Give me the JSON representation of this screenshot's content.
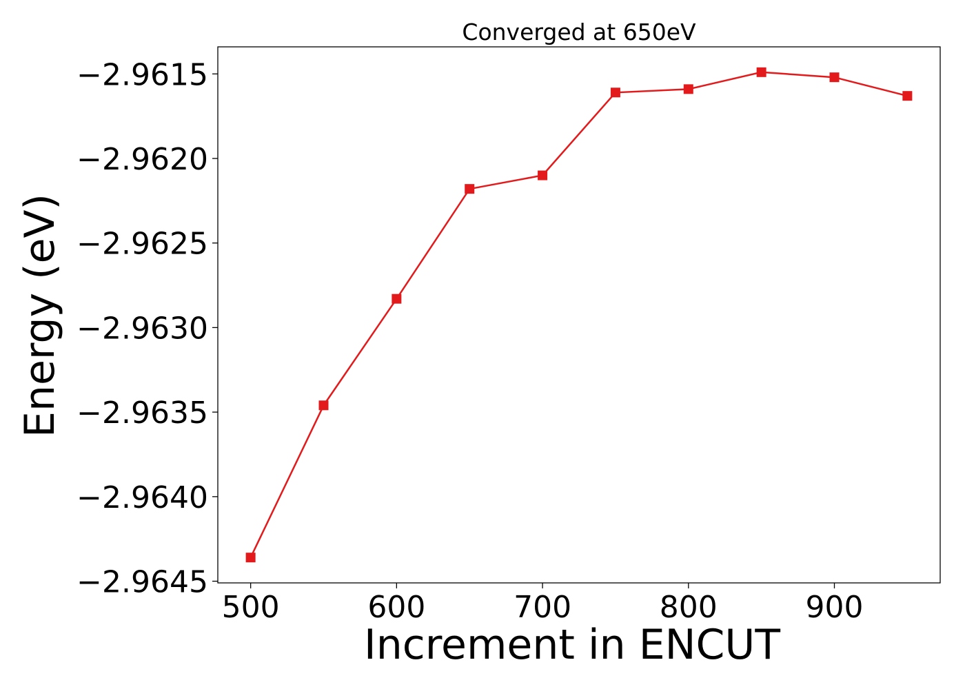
{
  "chart_data": {
    "type": "line",
    "title": "Converged at 650eV",
    "xlabel": "Increment in ENCUT",
    "ylabel": "Energy (eV)",
    "x": [
      500,
      550,
      600,
      650,
      700,
      750,
      800,
      850,
      900,
      950
    ],
    "series": [
      {
        "values": [
          -2.96436,
          -2.96346,
          -2.96283,
          -2.96218,
          -2.9621,
          -2.96161,
          -2.96159,
          -2.96149,
          -2.96152,
          -2.96163
        ],
        "color": "#e31a1c",
        "marker": "square"
      }
    ],
    "xlim": [
      477.5,
      972.5
    ],
    "ylim": [
      -2.96451,
      -2.96134
    ],
    "xticks": [
      500,
      600,
      700,
      800,
      900
    ],
    "xtick_labels": [
      "500",
      "600",
      "700",
      "800",
      "900"
    ],
    "yticks": [
      -2.9645,
      -2.964,
      -2.9635,
      -2.963,
      -2.9625,
      -2.962,
      -2.9615
    ],
    "ytick_labels": [
      "−2.9645",
      "−2.9640",
      "−2.9635",
      "−2.9630",
      "−2.9625",
      "−2.9620",
      "−2.9615"
    ],
    "grid": false,
    "legend": "none"
  }
}
